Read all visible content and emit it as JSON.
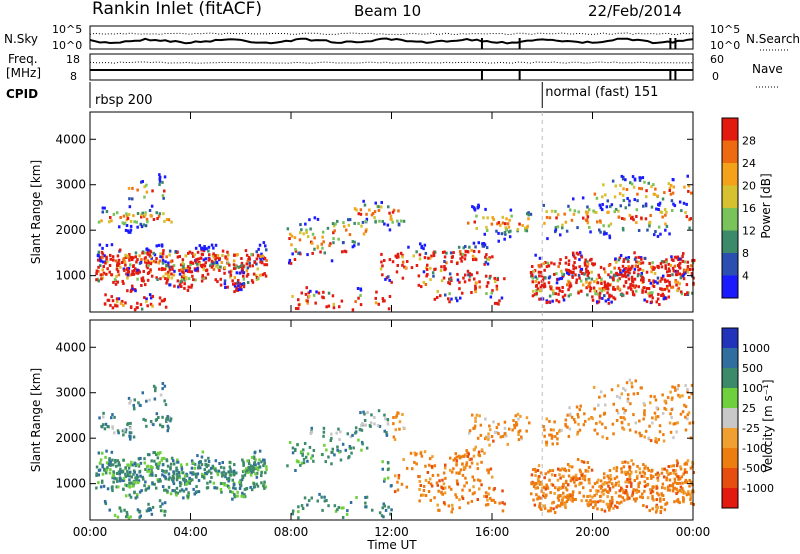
{
  "header": {
    "title": "Rankin Inlet (fitACF)",
    "beam": "Beam 10",
    "date": "22/Feb/2014"
  },
  "side_labels": {
    "n_sky": "N.Sky",
    "freq": "Freq.",
    "freq_unit": "[MHz]",
    "cpid": "CPID",
    "n_search": "N.Search",
    "nave": "Nave"
  },
  "noise_panel": {
    "left_ticks": [
      "10^5",
      "10^0"
    ],
    "right_ticks": [
      "10^5",
      "10^0"
    ]
  },
  "freq_panel": {
    "left_ticks": [
      "18",
      "8"
    ],
    "right_ticks": [
      "60",
      "0"
    ]
  },
  "cpid": {
    "first": "rbsp 200",
    "second": "normal (fast) 151",
    "switch_time_hours": 18.0
  },
  "chart_data": [
    {
      "type": "heatmap",
      "quantity": "Power",
      "ylabel": "Slant Range [km]",
      "yticks": [
        "1000",
        "2000",
        "3000",
        "4000"
      ],
      "ylim": [
        200,
        4600
      ],
      "colorbar": {
        "label": "Power [dB]",
        "ticks": [
          "4",
          "8",
          "12",
          "16",
          "20",
          "24",
          "28"
        ],
        "colors": [
          "#1a1aff",
          "#2b4fb0",
          "#3d8a6b",
          "#7ac35a",
          "#d6c230",
          "#f3a21a",
          "#ee6a10",
          "#e31a10"
        ]
      }
    },
    {
      "type": "heatmap",
      "quantity": "Velocity",
      "ylabel": "Slant Range [km]",
      "yticks": [
        "1000",
        "2000",
        "3000",
        "4000"
      ],
      "ylim": [
        200,
        4600
      ],
      "colorbar": {
        "label": "Velocity [m s⁻¹]",
        "ticks": [
          "1000",
          "500",
          "100",
          "25",
          "-25",
          "-100",
          "-500",
          "-1000"
        ],
        "colors": [
          "#2233bb",
          "#2f6e9e",
          "#3d8a6b",
          "#6fcf3d",
          "#c8c8c8",
          "#f0a030",
          "#ee7d10",
          "#e84d10",
          "#e31a10"
        ]
      }
    }
  ],
  "xaxis": {
    "label": "Time UT",
    "ticks": [
      "00:00",
      "04:00",
      "08:00",
      "12:00",
      "16:00",
      "20:00",
      "00:00"
    ]
  }
}
